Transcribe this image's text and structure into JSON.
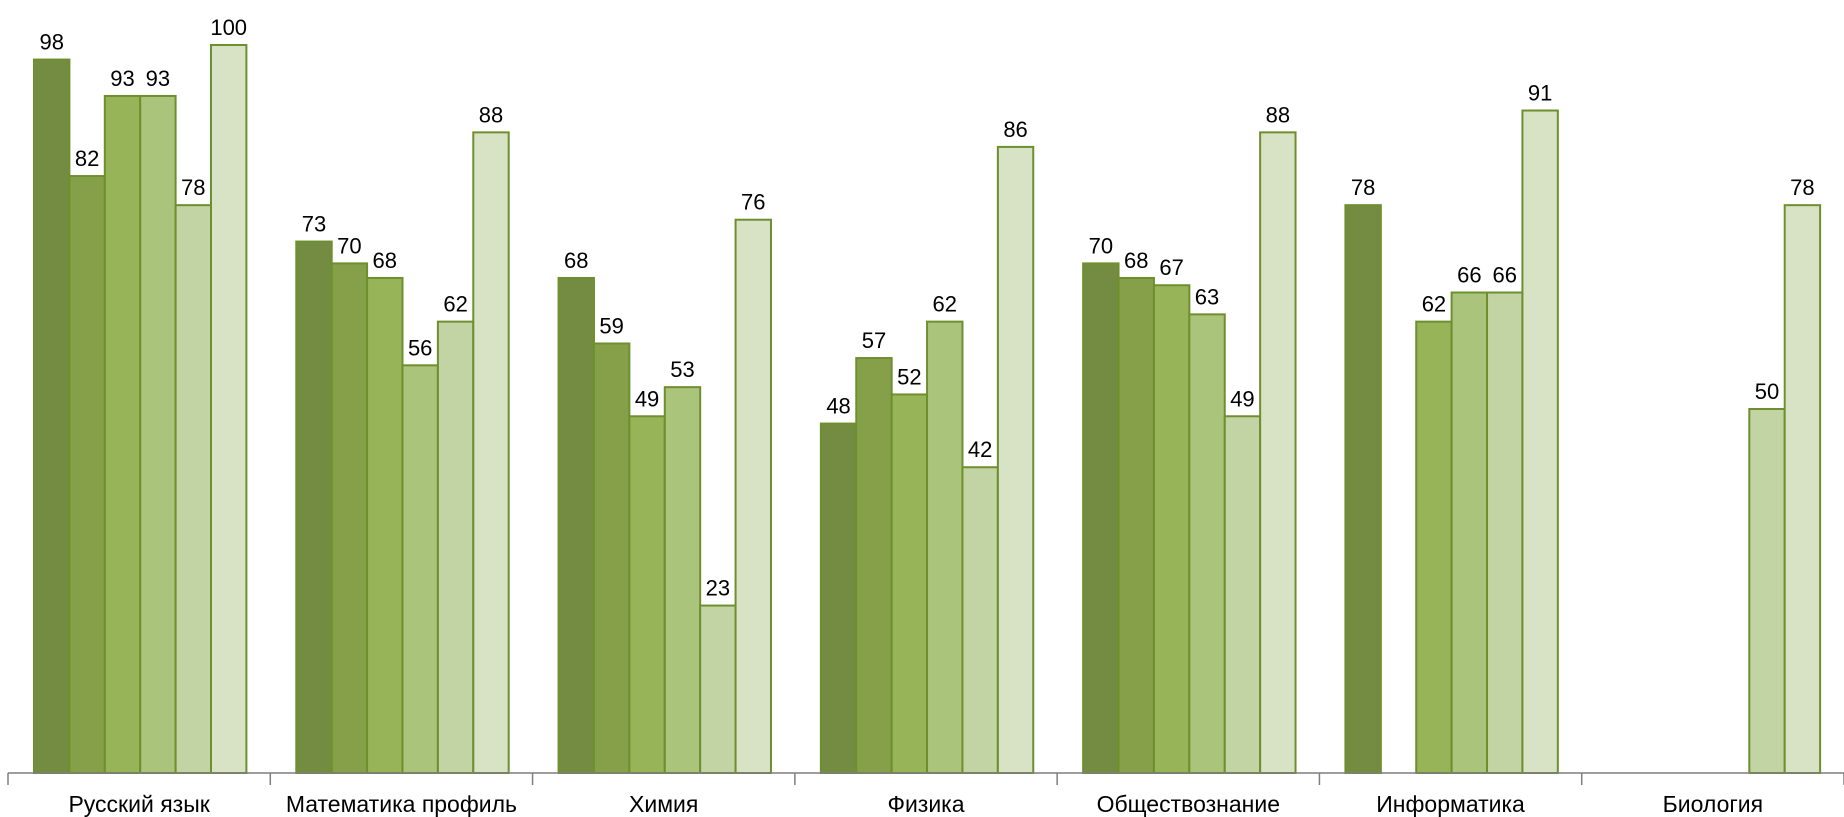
{
  "chart_data": {
    "type": "bar",
    "categories": [
      "Русский язык",
      "Математика профиль",
      "Химия",
      "Физика",
      "Обществознание",
      "Информатика",
      "Биология"
    ],
    "series": [
      {
        "color": "#748c41",
        "values": [
          98,
          73,
          68,
          48,
          70,
          78,
          null
        ]
      },
      {
        "color": "#86a04a",
        "values": [
          82,
          70,
          59,
          57,
          68,
          null,
          null
        ]
      },
      {
        "color": "#98b459",
        "values": [
          93,
          68,
          49,
          52,
          67,
          62,
          null
        ]
      },
      {
        "color": "#abc47c",
        "values": [
          93,
          56,
          53,
          62,
          63,
          66,
          null
        ]
      },
      {
        "color": "#c3d4a4",
        "values": [
          78,
          62,
          23,
          42,
          49,
          66,
          50
        ]
      },
      {
        "color": "#d7e3c4",
        "values": [
          100,
          88,
          76,
          86,
          88,
          91,
          78
        ]
      }
    ],
    "ylim": [
      0,
      100
    ],
    "grid": false,
    "legend": "none",
    "bar_stroke": "#6e8f2e"
  }
}
